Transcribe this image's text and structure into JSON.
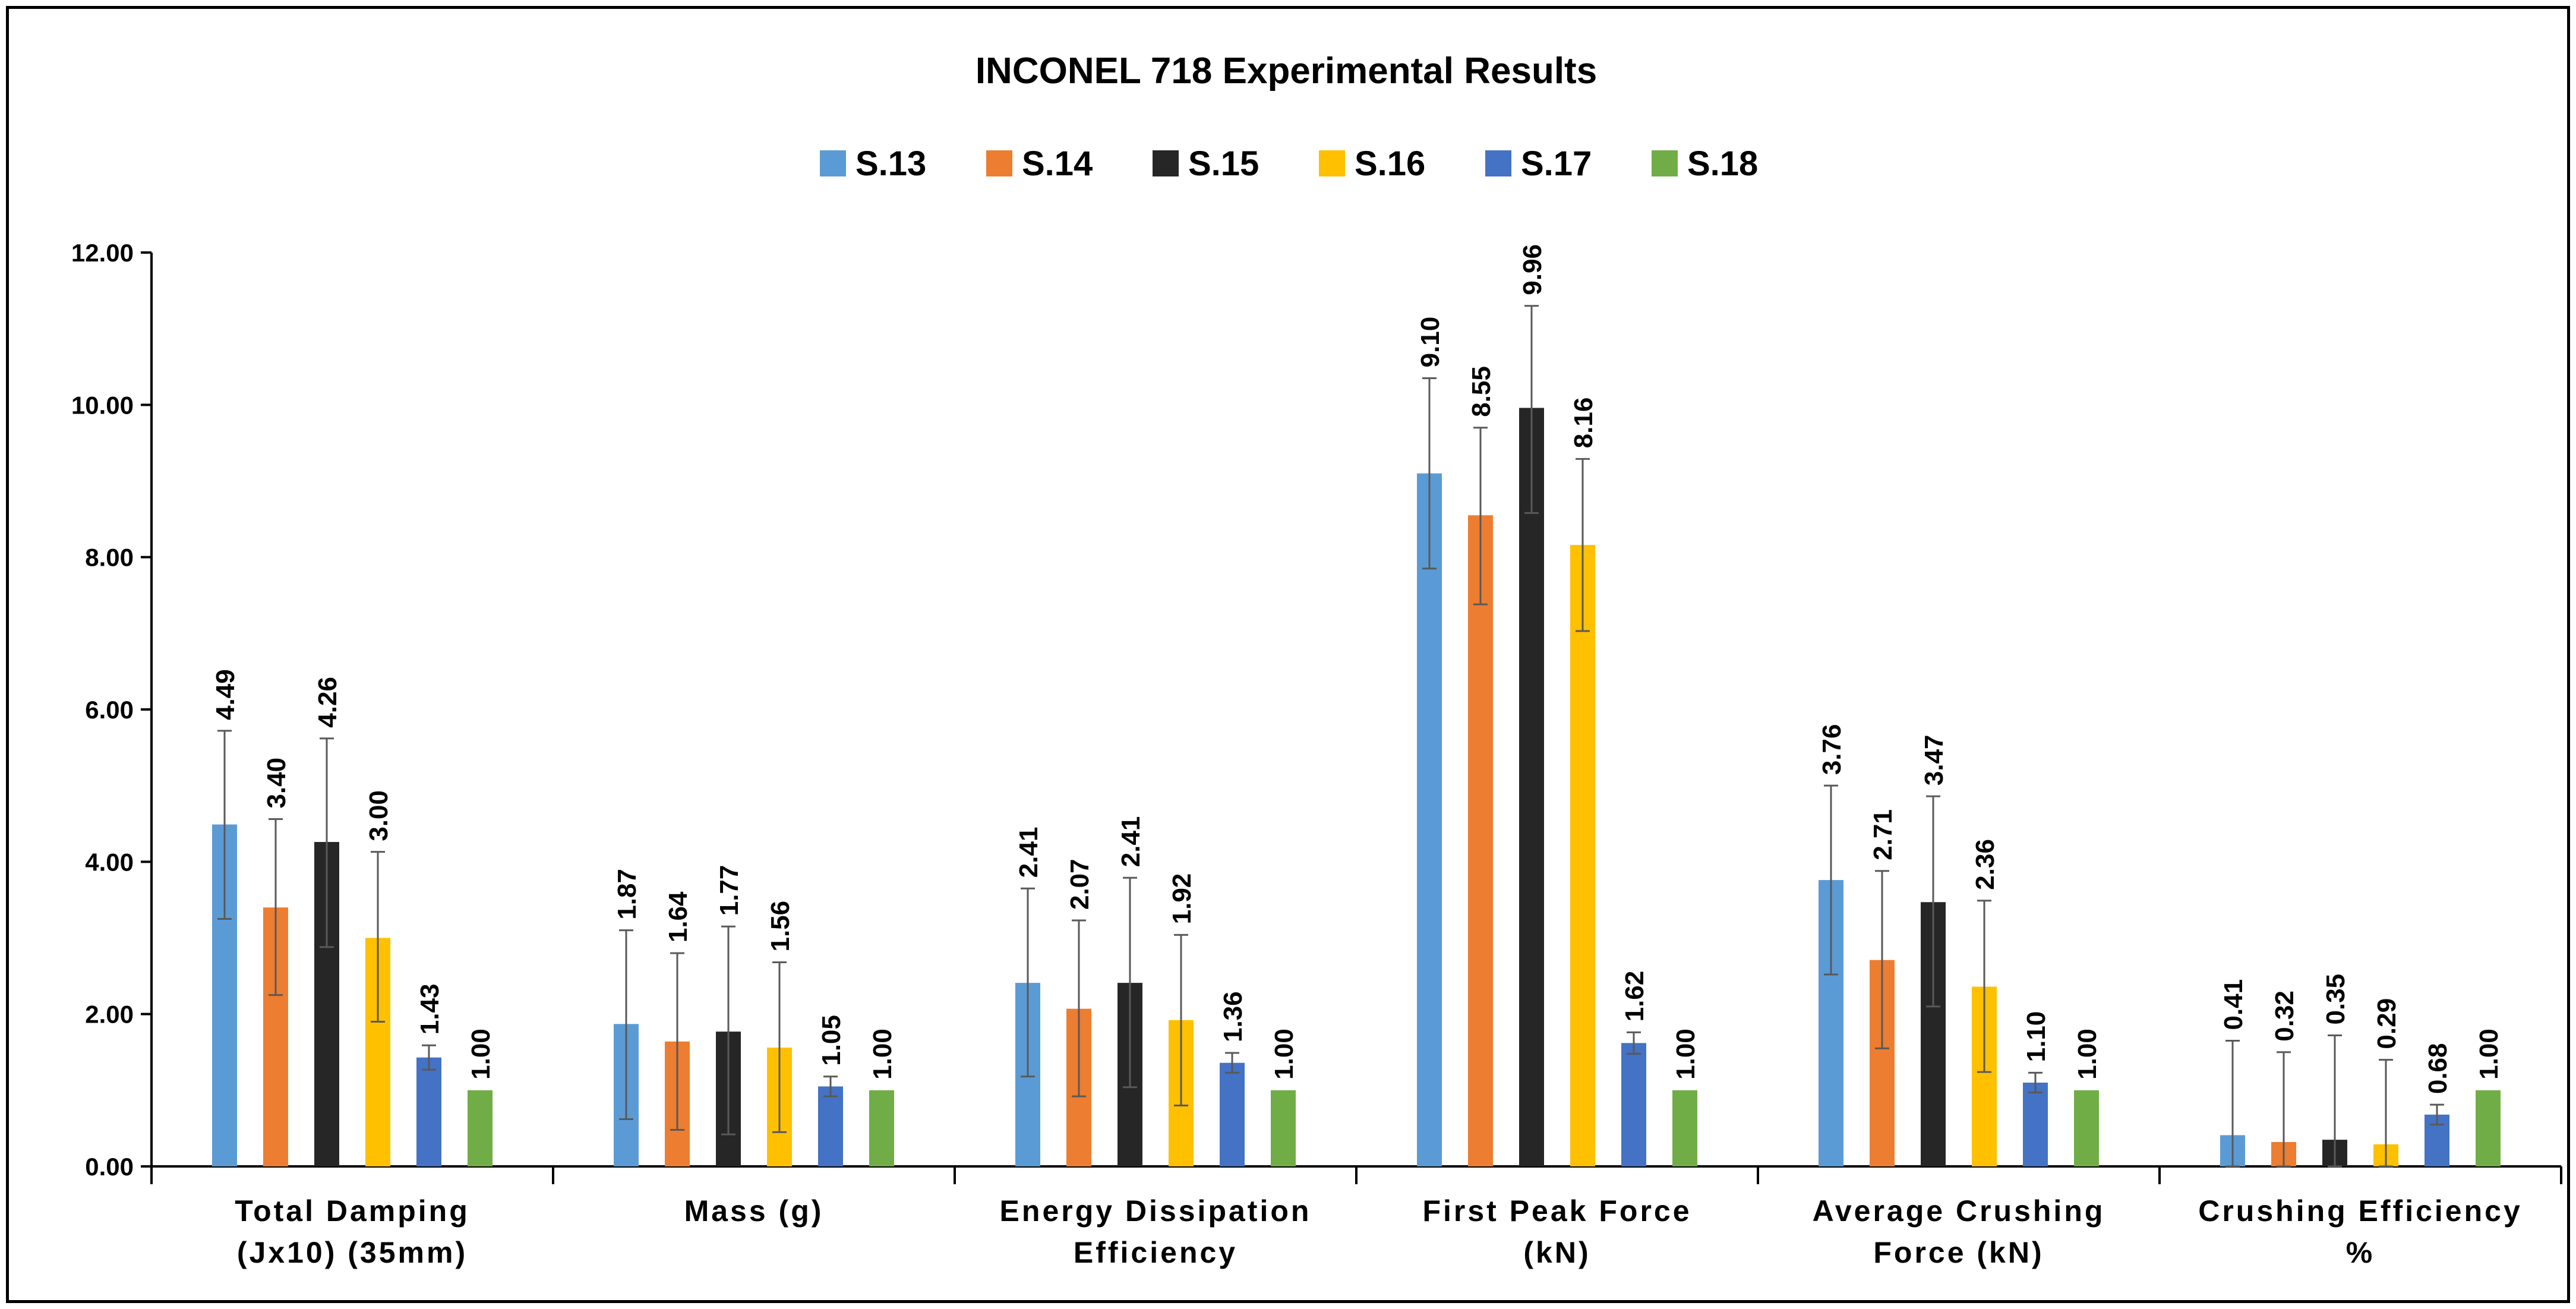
{
  "chart_data": {
    "type": "bar",
    "title": "INCONEL 718 Experimental Results",
    "categories": [
      [
        "Total Damping",
        "(Jx10) (35mm)"
      ],
      [
        "Mass (g)"
      ],
      [
        "Energy Dissipation",
        "Efficiency"
      ],
      [
        "First Peak Force",
        "(kN)"
      ],
      [
        "Average Crushing",
        "Force (kN)"
      ],
      [
        "Crushing Efficiency",
        "%"
      ]
    ],
    "series": [
      {
        "name": "S.13",
        "color": "#5B9BD5",
        "values": [
          4.49,
          1.87,
          2.41,
          9.1,
          3.76,
          0.41
        ],
        "labels": [
          "4.49",
          "1.87",
          "2.41",
          "9.10",
          "3.76",
          "0.41"
        ],
        "err_low": [
          3.25,
          0.62,
          1.18,
          7.85,
          2.52,
          0.0
        ],
        "err_high": [
          5.72,
          3.1,
          3.65,
          10.35,
          5.0,
          1.65
        ]
      },
      {
        "name": "S.14",
        "color": "#ED7D31",
        "values": [
          3.4,
          1.64,
          2.07,
          8.55,
          2.71,
          0.32
        ],
        "labels": [
          "3.40",
          "1.64",
          "2.07",
          "8.55",
          "2.71",
          "0.32"
        ],
        "err_low": [
          2.25,
          0.48,
          0.92,
          7.38,
          1.55,
          0.0
        ],
        "err_high": [
          4.56,
          2.8,
          3.23,
          9.7,
          3.88,
          1.5
        ]
      },
      {
        "name": "S.15",
        "color": "#262626",
        "values": [
          4.26,
          1.77,
          2.41,
          9.96,
          3.47,
          0.35
        ],
        "labels": [
          "4.26",
          "1.77",
          "2.41",
          "9.96",
          "3.47",
          "0.35"
        ],
        "err_low": [
          2.88,
          0.42,
          1.04,
          8.58,
          2.1,
          0.0
        ],
        "err_high": [
          5.62,
          3.15,
          3.79,
          11.3,
          4.86,
          1.72
        ]
      },
      {
        "name": "S.16",
        "color": "#FFC000",
        "values": [
          3.0,
          1.56,
          1.92,
          8.16,
          2.36,
          0.29
        ],
        "labels": [
          "3.00",
          "1.56",
          "1.92",
          "8.16",
          "2.36",
          "0.29"
        ],
        "err_low": [
          1.9,
          0.45,
          0.8,
          7.03,
          1.24,
          0.0
        ],
        "err_high": [
          4.13,
          2.68,
          3.04,
          9.29,
          3.49,
          1.4
        ]
      },
      {
        "name": "S.17",
        "color": "#4472C4",
        "values": [
          1.43,
          1.05,
          1.36,
          1.62,
          1.1,
          0.68
        ],
        "labels": [
          "1.43",
          "1.05",
          "1.36",
          "1.62",
          "1.10",
          "0.68"
        ],
        "err_low": [
          1.27,
          0.92,
          1.23,
          1.48,
          0.97,
          0.55
        ],
        "err_high": [
          1.59,
          1.18,
          1.49,
          1.76,
          1.23,
          0.81
        ]
      },
      {
        "name": "S.18",
        "color": "#70AD47",
        "values": [
          1.0,
          1.0,
          1.0,
          1.0,
          1.0,
          1.0
        ],
        "labels": [
          "1.00",
          "1.00",
          "1.00",
          "1.00",
          "1.00",
          "1.00"
        ],
        "err_low": [
          1.0,
          1.0,
          1.0,
          1.0,
          1.0,
          1.0
        ],
        "err_high": [
          1.0,
          1.0,
          1.0,
          1.0,
          1.0,
          1.0
        ]
      }
    ],
    "ylim": [
      0,
      12
    ],
    "yticks": [
      "0.00",
      "2.00",
      "4.00",
      "6.00",
      "8.00",
      "10.00",
      "12.00"
    ],
    "xlabel": "",
    "ylabel": "",
    "legend_position": "top-center",
    "grid": false,
    "error_bars": true
  }
}
